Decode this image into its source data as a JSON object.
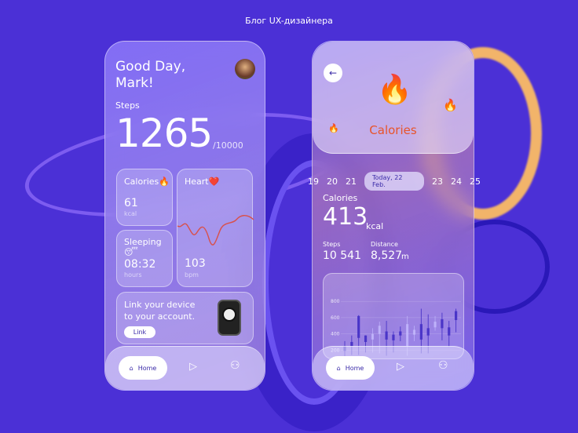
{
  "header": {
    "title": "Блог UX-дизайнера"
  },
  "home": {
    "greeting": "Good Day,\nMark!",
    "steps_label": "Steps",
    "steps_value": "1265",
    "steps_goal": "/10000",
    "calories": {
      "label": "Calories🔥",
      "value": "61",
      "unit": "kcal"
    },
    "heart": {
      "label": "Heart❤️",
      "value": "103",
      "unit": "bpm"
    },
    "sleeping": {
      "label": "Sleeping😴",
      "value": "08:32",
      "unit": "hours"
    },
    "link_card": {
      "text": "Link your device to your account.",
      "button": "Link"
    },
    "nav": {
      "home": "Home"
    }
  },
  "detail": {
    "title": "Calories",
    "dates": [
      "19",
      "20",
      "21",
      "Today, 22 Feb.",
      "23",
      "24",
      "25"
    ],
    "calories_label": "Calories",
    "calories_value": "413",
    "calories_unit": "kcal",
    "steps_label": "Steps",
    "steps_value": "10 541",
    "distance_label": "Distance",
    "distance_value": "8,527",
    "distance_unit": "m",
    "nav": {
      "home": "Home"
    }
  },
  "chart_data": {
    "type": "candlestick",
    "yticks": [
      "800",
      "600",
      "400",
      "200"
    ],
    "ylim": [
      0,
      800
    ],
    "candles": [
      [
        120,
        310,
        190,
        250
      ],
      [
        140,
        380,
        250,
        300
      ],
      [
        140,
        630,
        350,
        620
      ],
      [
        170,
        380,
        300,
        380
      ],
      [
        170,
        470,
        330,
        400
      ],
      [
        160,
        550,
        400,
        500
      ],
      [
        130,
        560,
        330,
        430
      ],
      [
        170,
        430,
        320,
        390
      ],
      [
        310,
        490,
        380,
        430
      ],
      [
        130,
        620,
        250,
        520
      ],
      [
        310,
        500,
        390,
        450
      ],
      [
        160,
        710,
        330,
        520
      ],
      [
        160,
        640,
        380,
        470
      ],
      [
        440,
        620,
        480,
        550
      ],
      [
        320,
        660,
        470,
        580
      ],
      [
        240,
        560,
        380,
        480
      ],
      [
        420,
        710,
        570,
        680
      ]
    ]
  },
  "colors": {
    "background": "#4b30d6",
    "accent": "#3a2aa8",
    "calories_title": "#e8542a"
  }
}
